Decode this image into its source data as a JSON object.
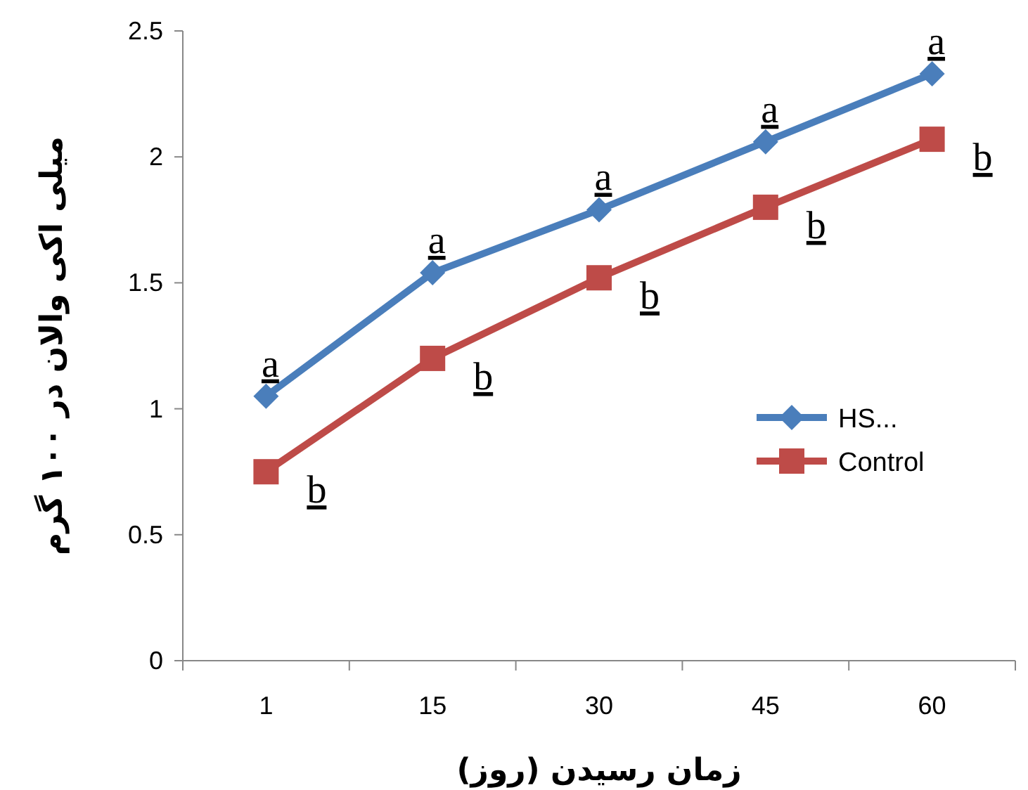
{
  "chart_data": {
    "type": "line",
    "xlabel": "زمان رسیدن (روز)",
    "ylabel": "میلی اکی والان در ۱۰۰ گرم",
    "categories": [
      "1",
      "15",
      "30",
      "45",
      "60"
    ],
    "series": [
      {
        "name": "HS...",
        "color": "#4a7ebb",
        "marker": "diamond",
        "values": [
          1.05,
          1.54,
          1.79,
          2.06,
          2.33
        ]
      },
      {
        "name": "Control",
        "color": "#be4b48",
        "marker": "square",
        "values": [
          0.75,
          1.2,
          1.52,
          1.8,
          2.07
        ]
      }
    ],
    "ylim": [
      0,
      2.5
    ],
    "yticks": [
      0,
      0.5,
      1,
      1.5,
      2,
      2.5
    ],
    "grid": false,
    "legend": "right",
    "line_style": "solid",
    "annotations": [
      {
        "text": "a",
        "x": "1",
        "y": 1.05
      },
      {
        "text": "a",
        "x": "15",
        "y": 1.54
      },
      {
        "text": "a",
        "x": "30",
        "y": 1.79
      },
      {
        "text": "a",
        "x": "45",
        "y": 2.06
      },
      {
        "text": "a",
        "x": "60",
        "y": 2.33
      },
      {
        "text": "b",
        "x": "1",
        "y": 0.75
      },
      {
        "text": "b",
        "x": "15",
        "y": 1.2
      },
      {
        "text": "b",
        "x": "30",
        "y": 1.52
      },
      {
        "text": "b",
        "x": "45",
        "y": 1.8
      },
      {
        "text": "b",
        "x": "60",
        "y": 2.07
      }
    ]
  }
}
